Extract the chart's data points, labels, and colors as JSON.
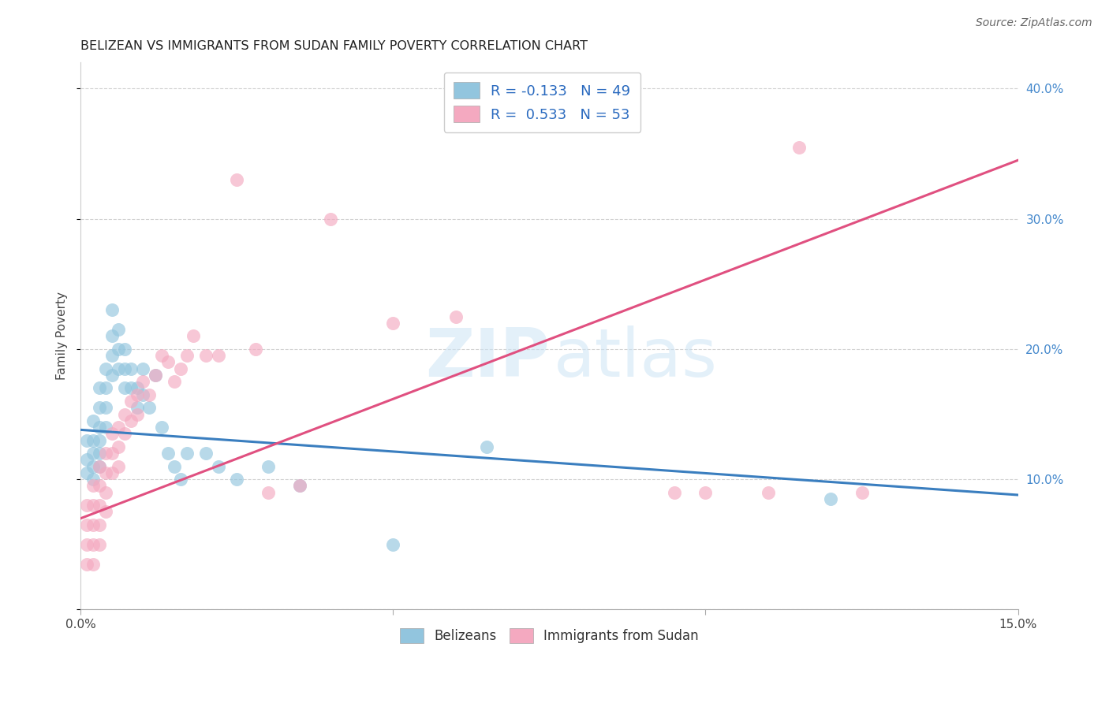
{
  "title": "BELIZEAN VS IMMIGRANTS FROM SUDAN FAMILY POVERTY CORRELATION CHART",
  "source": "Source: ZipAtlas.com",
  "ylabel": "Family Poverty",
  "x_min": 0.0,
  "x_max": 0.15,
  "y_min": 0.0,
  "y_max": 0.42,
  "legend_labels": [
    "Belizeans",
    "Immigrants from Sudan"
  ],
  "belizean_R": -0.133,
  "belizean_N": 49,
  "sudan_R": 0.533,
  "sudan_N": 53,
  "blue_color": "#92c5de",
  "pink_color": "#f4a9c0",
  "blue_line_color": "#3a7ebf",
  "pink_line_color": "#e05080",
  "watermark_zip": "ZIP",
  "watermark_atlas": "atlas",
  "blue_trend_x0": 0.0,
  "blue_trend_y0": 0.138,
  "blue_trend_x1": 0.15,
  "blue_trend_y1": 0.088,
  "pink_trend_x0": 0.0,
  "pink_trend_y0": 0.07,
  "pink_trend_x1": 0.15,
  "pink_trend_y1": 0.345,
  "belizean_x": [
    0.001,
    0.001,
    0.001,
    0.002,
    0.002,
    0.002,
    0.002,
    0.002,
    0.003,
    0.003,
    0.003,
    0.003,
    0.003,
    0.003,
    0.004,
    0.004,
    0.004,
    0.004,
    0.005,
    0.005,
    0.005,
    0.005,
    0.006,
    0.006,
    0.006,
    0.007,
    0.007,
    0.007,
    0.008,
    0.008,
    0.009,
    0.009,
    0.01,
    0.01,
    0.011,
    0.012,
    0.013,
    0.014,
    0.015,
    0.016,
    0.017,
    0.02,
    0.022,
    0.025,
    0.03,
    0.035,
    0.05,
    0.065,
    0.12
  ],
  "belizean_y": [
    0.13,
    0.115,
    0.105,
    0.145,
    0.13,
    0.12,
    0.11,
    0.1,
    0.17,
    0.155,
    0.14,
    0.13,
    0.12,
    0.11,
    0.185,
    0.17,
    0.155,
    0.14,
    0.23,
    0.21,
    0.195,
    0.18,
    0.215,
    0.2,
    0.185,
    0.2,
    0.185,
    0.17,
    0.185,
    0.17,
    0.17,
    0.155,
    0.185,
    0.165,
    0.155,
    0.18,
    0.14,
    0.12,
    0.11,
    0.1,
    0.12,
    0.12,
    0.11,
    0.1,
    0.11,
    0.095,
    0.05,
    0.125,
    0.085
  ],
  "sudan_x": [
    0.001,
    0.001,
    0.001,
    0.001,
    0.002,
    0.002,
    0.002,
    0.002,
    0.002,
    0.003,
    0.003,
    0.003,
    0.003,
    0.003,
    0.004,
    0.004,
    0.004,
    0.004,
    0.005,
    0.005,
    0.005,
    0.006,
    0.006,
    0.006,
    0.007,
    0.007,
    0.008,
    0.008,
    0.009,
    0.009,
    0.01,
    0.011,
    0.012,
    0.013,
    0.014,
    0.015,
    0.016,
    0.017,
    0.018,
    0.02,
    0.022,
    0.025,
    0.028,
    0.03,
    0.035,
    0.04,
    0.05,
    0.06,
    0.095,
    0.1,
    0.11,
    0.115,
    0.125
  ],
  "sudan_y": [
    0.08,
    0.065,
    0.05,
    0.035,
    0.095,
    0.08,
    0.065,
    0.05,
    0.035,
    0.11,
    0.095,
    0.08,
    0.065,
    0.05,
    0.12,
    0.105,
    0.09,
    0.075,
    0.135,
    0.12,
    0.105,
    0.14,
    0.125,
    0.11,
    0.15,
    0.135,
    0.16,
    0.145,
    0.165,
    0.15,
    0.175,
    0.165,
    0.18,
    0.195,
    0.19,
    0.175,
    0.185,
    0.195,
    0.21,
    0.195,
    0.195,
    0.33,
    0.2,
    0.09,
    0.095,
    0.3,
    0.22,
    0.225,
    0.09,
    0.09,
    0.09,
    0.355,
    0.09
  ]
}
